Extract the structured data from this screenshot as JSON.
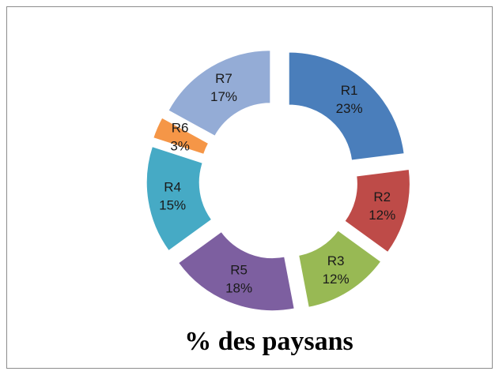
{
  "chart_data": {
    "type": "pie",
    "title": "% des paysans",
    "categories": [
      "R1",
      "R2",
      "R3",
      "R5",
      "R4",
      "R6",
      "R7"
    ],
    "values": [
      23,
      12,
      12,
      18,
      15,
      3,
      17
    ],
    "value_labels": [
      "23%",
      "12%",
      "12%",
      "18%",
      "15%",
      "3%",
      "17%"
    ],
    "colors": [
      "#4a7ebb",
      "#be4b48",
      "#98b954",
      "#7d5fa0",
      "#46aac5",
      "#f59647",
      "#94acd6"
    ],
    "donut": true,
    "exploded": true
  }
}
